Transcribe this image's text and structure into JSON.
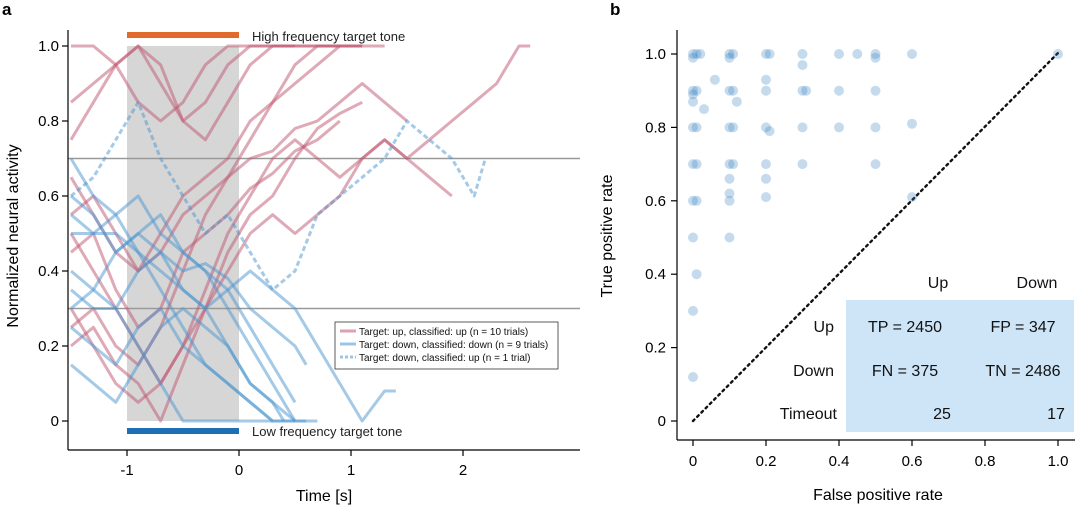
{
  "colors": {
    "up": "#c0566f",
    "down": "#4a95cf",
    "high_bar": "#e06b2d",
    "low_bar": "#1f6fb5",
    "stim": "#d6d6d6",
    "threshold": "#999999",
    "scatter": "#2f7fc0",
    "conf_bg": "#cde5f7"
  },
  "chart_data": [
    {
      "panel_label": "a",
      "type": "line",
      "xlabel": "Time [s]",
      "ylabel": "Normalized neural activity",
      "xlim": [
        -1.5,
        3.0
      ],
      "ylim": [
        0,
        1
      ],
      "xticks": [
        -1,
        0,
        1,
        2
      ],
      "xtick_labels": [
        "-1",
        "0",
        "1",
        "2"
      ],
      "yticks": [
        0,
        0.2,
        0.4,
        0.6,
        0.8,
        1.0
      ],
      "ytick_labels": [
        "0",
        "0.2",
        "0.4",
        "0.6",
        "0.8",
        "1.0"
      ],
      "stimulus_window": [
        -1,
        0
      ],
      "thresholds": [
        0.7,
        0.3
      ],
      "annotations": {
        "high_tone": "High frequency target tone",
        "low_tone": "Low frequency target tone"
      },
      "legend": [
        {
          "label": "Target: up, classified: up (n = 10 trials)",
          "style": "up"
        },
        {
          "label": "Target: down, classified: down (n = 9 trials)",
          "style": "down"
        },
        {
          "label": "Target: down, classified: up (n = 1 trial)",
          "style": "down_dashed"
        }
      ],
      "series": [
        {
          "name": "up-1",
          "group": "up",
          "x": [
            -1.5,
            -1.3,
            -1.1,
            -0.9,
            -0.7,
            -0.5,
            -0.3,
            -0.1,
            0.1,
            0.3,
            0.5,
            0.7,
            0.9,
            1.1,
            1.3,
            1.5,
            1.7,
            1.9,
            2.1,
            2.3,
            2.5,
            2.6
          ],
          "y": [
            0.5,
            0.4,
            0.3,
            0.2,
            0.1,
            0.2,
            0.35,
            0.5,
            0.6,
            0.7,
            0.75,
            0.7,
            0.65,
            0.7,
            0.75,
            0.7,
            0.75,
            0.8,
            0.85,
            0.9,
            1.0,
            1.0
          ]
        },
        {
          "name": "up-2",
          "group": "up",
          "x": [
            -1.5,
            -1.3,
            -1.1,
            -0.9,
            -0.7,
            -0.5,
            -0.3,
            -0.1,
            0.1,
            0.3,
            0.5,
            0.7,
            0.9,
            1.1,
            1.3
          ],
          "y": [
            1.0,
            1.0,
            0.95,
            0.85,
            0.8,
            0.85,
            0.95,
            1.0,
            1.0,
            1.0,
            1.0,
            1.0,
            1.0,
            1.0,
            1.0
          ]
        },
        {
          "name": "up-3",
          "group": "up",
          "x": [
            -1.5,
            -1.3,
            -1.1,
            -0.9,
            -0.7,
            -0.5,
            -0.3,
            -0.1,
            0.1,
            0.3,
            0.5,
            0.7,
            0.9
          ],
          "y": [
            0.75,
            0.85,
            0.95,
            1.0,
            0.9,
            0.8,
            0.85,
            0.95,
            1.0,
            1.0,
            1.0,
            1.0,
            1.0
          ]
        },
        {
          "name": "up-4",
          "group": "up",
          "x": [
            -1.5,
            -1.3,
            -1.1,
            -0.9,
            -0.7,
            -0.5,
            -0.3,
            -0.1,
            0.1,
            0.3,
            0.5,
            0.7,
            0.9,
            1.1
          ],
          "y": [
            0.25,
            0.3,
            0.2,
            0.15,
            0.25,
            0.4,
            0.55,
            0.65,
            0.75,
            0.85,
            0.95,
            1.0,
            1.0,
            1.0
          ]
        },
        {
          "name": "up-5",
          "group": "up",
          "x": [
            -1.5,
            -1.3,
            -1.1,
            -0.9,
            -0.7,
            -0.5,
            -0.3,
            -0.1,
            0.1,
            0.3,
            0.5,
            0.7,
            0.9,
            1.1,
            1.3,
            1.5,
            1.7,
            1.9
          ],
          "y": [
            0.3,
            0.2,
            0.1,
            0.05,
            0.1,
            0.2,
            0.3,
            0.4,
            0.5,
            0.55,
            0.5,
            0.55,
            0.6,
            0.7,
            0.75,
            0.7,
            0.65,
            0.6
          ]
        },
        {
          "name": "up-6",
          "group": "up",
          "x": [
            -1.5,
            -1.3,
            -1.1,
            -0.9,
            -0.7,
            -0.5,
            -0.3,
            -0.1,
            0.1,
            0.3,
            0.5,
            0.7,
            0.9,
            1.1,
            1.3,
            1.5
          ],
          "y": [
            0.55,
            0.6,
            0.5,
            0.4,
            0.45,
            0.55,
            0.6,
            0.65,
            0.7,
            0.72,
            0.78,
            0.8,
            0.85,
            0.9,
            0.85,
            0.8
          ]
        },
        {
          "name": "up-7",
          "group": "up",
          "x": [
            -1.5,
            -1.3,
            -1.1,
            -0.9,
            -0.7,
            -0.5,
            -0.3,
            -0.1,
            0.1,
            0.3,
            0.5
          ],
          "y": [
            0.85,
            0.9,
            0.95,
            1.0,
            0.95,
            0.8,
            0.75,
            0.85,
            0.95,
            1.0,
            1.0
          ]
        },
        {
          "name": "up-8",
          "group": "up",
          "x": [
            -1.5,
            -1.3,
            -1.1,
            -0.9,
            -0.7,
            -0.5,
            -0.3,
            -0.1,
            0.1,
            0.3,
            0.5,
            0.7,
            0.9,
            1.1
          ],
          "y": [
            0.65,
            0.55,
            0.45,
            0.4,
            0.5,
            0.6,
            0.65,
            0.7,
            0.8,
            0.85,
            0.9,
            0.95,
            1.0,
            1.0
          ]
        },
        {
          "name": "up-9",
          "group": "up",
          "x": [
            -1.5,
            -1.3,
            -1.1,
            -0.9,
            -0.7,
            -0.5,
            -0.3,
            -0.1,
            0.1,
            0.3,
            0.5,
            0.7,
            0.9,
            1.1
          ],
          "y": [
            0.2,
            0.25,
            0.15,
            0.1,
            0.0,
            0.15,
            0.3,
            0.45,
            0.55,
            0.6,
            0.7,
            0.78,
            0.82,
            0.85
          ]
        },
        {
          "name": "up-10",
          "group": "up",
          "x": [
            -1.5,
            -1.3,
            -1.1,
            -0.9,
            -0.7,
            -0.5,
            -0.3,
            -0.1,
            0.1,
            0.3,
            0.5,
            0.7,
            0.9
          ],
          "y": [
            0.45,
            0.5,
            0.35,
            0.25,
            0.3,
            0.45,
            0.5,
            0.55,
            0.62,
            0.66,
            0.72,
            0.75,
            0.8
          ]
        },
        {
          "name": "down-1",
          "group": "down",
          "x": [
            -1.5,
            -1.3,
            -1.1,
            -0.9,
            -0.7,
            -0.5,
            -0.3,
            -0.1,
            0.1,
            0.3,
            0.5,
            0.6
          ],
          "y": [
            0.7,
            0.6,
            0.55,
            0.45,
            0.35,
            0.25,
            0.15,
            0.1,
            0.05,
            0.0,
            0.0,
            0.0
          ]
        },
        {
          "name": "down-2",
          "group": "down",
          "x": [
            -1.5,
            -1.3,
            -1.1,
            -0.9,
            -0.7,
            -0.5,
            -0.3,
            -0.1,
            0.1,
            0.3,
            0.5,
            0.7
          ],
          "y": [
            0.5,
            0.5,
            0.5,
            0.45,
            0.4,
            0.35,
            0.3,
            0.2,
            0.1,
            0.05,
            0.0,
            0.0
          ]
        },
        {
          "name": "down-3",
          "group": "down",
          "x": [
            -1.5,
            -1.3,
            -1.1,
            -0.9,
            -0.7,
            -0.5,
            -0.3,
            -0.1,
            0.1,
            0.3,
            0.5,
            0.7,
            0.9,
            1.1,
            1.3,
            1.4
          ],
          "y": [
            0.35,
            0.3,
            0.3,
            0.4,
            0.45,
            0.35,
            0.3,
            0.35,
            0.4,
            0.35,
            0.3,
            0.2,
            0.1,
            0.0,
            0.08,
            0.08
          ]
        },
        {
          "name": "down-4",
          "group": "down",
          "x": [
            -1.5,
            -1.3,
            -1.1,
            -0.9,
            -0.7,
            -0.5,
            -0.3,
            -0.1,
            0.1,
            0.3,
            0.5
          ],
          "y": [
            0.25,
            0.2,
            0.15,
            0.25,
            0.3,
            0.2,
            0.15,
            0.1,
            0.05,
            0.0,
            0.0
          ]
        },
        {
          "name": "down-5",
          "group": "down",
          "x": [
            -1.5,
            -1.3,
            -1.1,
            -0.9,
            -0.7,
            -0.5,
            -0.3,
            -0.1,
            0.1,
            0.3,
            0.5
          ],
          "y": [
            0.6,
            0.55,
            0.45,
            0.5,
            0.55,
            0.45,
            0.4,
            0.3,
            0.2,
            0.1,
            0.0
          ]
        },
        {
          "name": "down-6",
          "group": "down",
          "x": [
            -1.5,
            -1.3,
            -1.1,
            -0.9,
            -0.7,
            -0.5,
            -0.3,
            -0.1,
            0.1,
            0.3,
            0.5,
            0.6
          ],
          "y": [
            0.3,
            0.35,
            0.45,
            0.5,
            0.45,
            0.4,
            0.42,
            0.38,
            0.3,
            0.25,
            0.2,
            0.15
          ]
        },
        {
          "name": "down-7",
          "group": "down",
          "x": [
            -1.5,
            -1.3,
            -1.1,
            -0.9,
            -0.7,
            -0.5,
            -0.3,
            -0.1,
            0.1,
            0.3,
            0.4
          ],
          "y": [
            0.15,
            0.1,
            0.05,
            0.15,
            0.25,
            0.3,
            0.25,
            0.2,
            0.1,
            0.05,
            0.0
          ]
        },
        {
          "name": "down-8",
          "group": "down",
          "x": [
            -1.5,
            -1.3,
            -1.1,
            -0.9,
            -0.7,
            -0.5,
            -0.3,
            -0.1,
            0.1,
            0.3
          ],
          "y": [
            0.4,
            0.35,
            0.3,
            0.2,
            0.1,
            0.0,
            0.0,
            0.0,
            0.0,
            0.0
          ]
        },
        {
          "name": "down-9",
          "group": "down",
          "x": [
            -1.5,
            -1.3,
            -1.1,
            -0.9,
            -0.7,
            -0.5,
            -0.3,
            -0.1,
            0.1,
            0.3,
            0.5
          ],
          "y": [
            0.55,
            0.5,
            0.55,
            0.6,
            0.5,
            0.45,
            0.4,
            0.35,
            0.25,
            0.15,
            0.05
          ]
        },
        {
          "name": "down-up-1",
          "group": "down_dashed",
          "x": [
            -1.5,
            -1.3,
            -1.1,
            -0.9,
            -0.7,
            -0.5,
            -0.3,
            -0.1,
            0.1,
            0.3,
            0.5,
            0.7,
            0.9,
            1.1,
            1.3,
            1.5,
            1.7,
            1.9,
            2.1,
            2.2
          ],
          "y": [
            0.6,
            0.65,
            0.75,
            0.85,
            0.7,
            0.6,
            0.5,
            0.55,
            0.45,
            0.35,
            0.4,
            0.55,
            0.6,
            0.65,
            0.7,
            0.8,
            0.75,
            0.7,
            0.6,
            0.7
          ]
        }
      ]
    },
    {
      "panel_label": "b",
      "type": "scatter",
      "xlabel": "False positive rate",
      "ylabel": "True positive rate",
      "xlim": [
        0,
        1
      ],
      "ylim": [
        0,
        1
      ],
      "xticks": [
        0,
        0.2,
        0.4,
        0.6,
        0.8,
        1.0
      ],
      "xtick_labels": [
        "0",
        "0.2",
        "0.4",
        "0.6",
        "0.8",
        "1.0"
      ],
      "yticks": [
        0,
        0.2,
        0.4,
        0.6,
        0.8,
        1.0
      ],
      "ytick_labels": [
        "0",
        "0.2",
        "0.4",
        "0.6",
        "0.8",
        "1.0"
      ],
      "diagonal": true,
      "points": [
        [
          0,
          1
        ],
        [
          0.01,
          1
        ],
        [
          0,
          0.99
        ],
        [
          0.02,
          1
        ],
        [
          0.1,
          1
        ],
        [
          0.11,
          1
        ],
        [
          0.1,
          0.99
        ],
        [
          0.2,
          1
        ],
        [
          0.21,
          1
        ],
        [
          0.3,
          1
        ],
        [
          0.4,
          1
        ],
        [
          0.45,
          1
        ],
        [
          0.5,
          1
        ],
        [
          0.5,
          0.99
        ],
        [
          0.6,
          1
        ],
        [
          1.0,
          1.0
        ],
        [
          0,
          0.9
        ],
        [
          0.01,
          0.9
        ],
        [
          0,
          0.89
        ],
        [
          0.1,
          0.9
        ],
        [
          0.11,
          0.9
        ],
        [
          0.2,
          0.9
        ],
        [
          0.3,
          0.9
        ],
        [
          0.31,
          0.9
        ],
        [
          0.4,
          0.9
        ],
        [
          0.5,
          0.9
        ],
        [
          0.06,
          0.93
        ],
        [
          0.12,
          0.87
        ],
        [
          0.2,
          0.93
        ],
        [
          0.3,
          0.97
        ],
        [
          0,
          0.8
        ],
        [
          0.01,
          0.8
        ],
        [
          0.1,
          0.8
        ],
        [
          0.11,
          0.8
        ],
        [
          0.2,
          0.8
        ],
        [
          0.21,
          0.79
        ],
        [
          0.3,
          0.8
        ],
        [
          0.4,
          0.8
        ],
        [
          0.5,
          0.8
        ],
        [
          0.6,
          0.81
        ],
        [
          0,
          0.7
        ],
        [
          0.01,
          0.7
        ],
        [
          0.1,
          0.7
        ],
        [
          0.11,
          0.7
        ],
        [
          0.2,
          0.7
        ],
        [
          0.3,
          0.7
        ],
        [
          0.5,
          0.7
        ],
        [
          0.1,
          0.66
        ],
        [
          0.2,
          0.66
        ],
        [
          0,
          0.6
        ],
        [
          0.01,
          0.6
        ],
        [
          0.1,
          0.6
        ],
        [
          0.1,
          0.62
        ],
        [
          0.2,
          0.61
        ],
        [
          0.6,
          0.61
        ],
        [
          0,
          0.5
        ],
        [
          0.1,
          0.5
        ],
        [
          0.01,
          0.4
        ],
        [
          0,
          0.3
        ],
        [
          0,
          0.12
        ],
        [
          0,
          0.87
        ],
        [
          0.03,
          0.85
        ]
      ],
      "confusion_matrix": {
        "col_headers": [
          "Up",
          "Down"
        ],
        "rows": [
          {
            "label": "Up",
            "cells": [
              "TP = 2450",
              "FP = 347"
            ]
          },
          {
            "label": "Down",
            "cells": [
              "FN = 375",
              "TN = 2486"
            ]
          },
          {
            "label": "Timeout",
            "cells": [
              "25",
              "17"
            ]
          }
        ]
      }
    }
  ]
}
